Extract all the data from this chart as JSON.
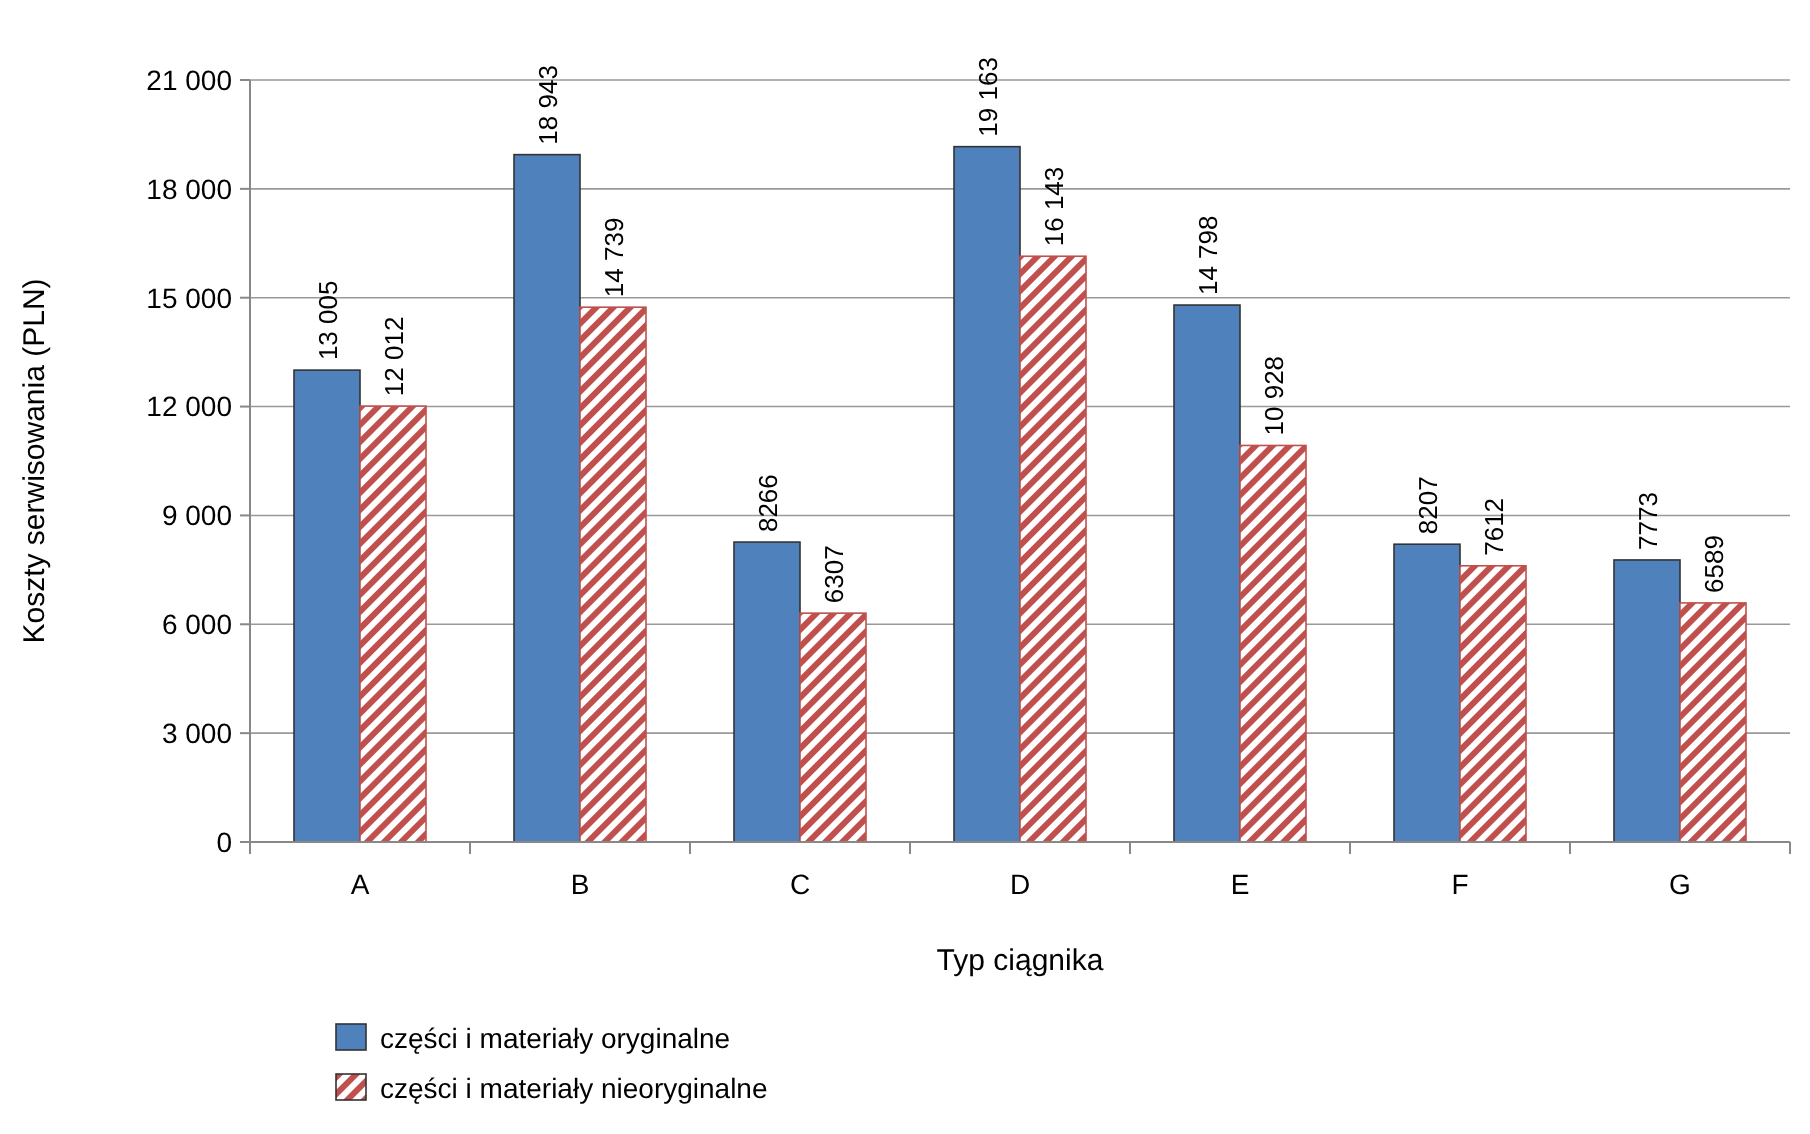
{
  "chart_data": {
    "type": "bar",
    "xlabel": "Typ ciągnika",
    "ylabel": "Koszty serwisowania (PLN)",
    "categories": [
      "A",
      "B",
      "C",
      "D",
      "E",
      "F",
      "G"
    ],
    "series": [
      {
        "name": "części i materiały oryginalne",
        "color": "#4f81bd",
        "values": [
          13005,
          18943,
          8266,
          19163,
          14798,
          8207,
          7773
        ],
        "value_labels": [
          "13 005",
          "18 943",
          "8266",
          "19 163",
          "14 798",
          "8207",
          "7773"
        ]
      },
      {
        "name": "części i materiały nieoryginalne",
        "color": "#c0504d",
        "values": [
          12012,
          14739,
          6307,
          16143,
          10928,
          7612,
          6589
        ],
        "value_labels": [
          "12 012",
          "14 739",
          "6307",
          "16 143",
          "10 928",
          "7612",
          "6589"
        ]
      }
    ],
    "ylim": [
      0,
      21000
    ],
    "yticks": [
      {
        "value": 0,
        "label": "0"
      },
      {
        "value": 3000,
        "label": "3 000"
      },
      {
        "value": 6000,
        "label": "6 000"
      },
      {
        "value": 9000,
        "label": "9 000"
      },
      {
        "value": 12000,
        "label": "12 000"
      },
      {
        "value": 15000,
        "label": "15 000"
      },
      {
        "value": 18000,
        "label": "18 000"
      },
      {
        "value": 21000,
        "label": "21 000"
      }
    ],
    "grid": "y",
    "legend": "bottom left"
  }
}
